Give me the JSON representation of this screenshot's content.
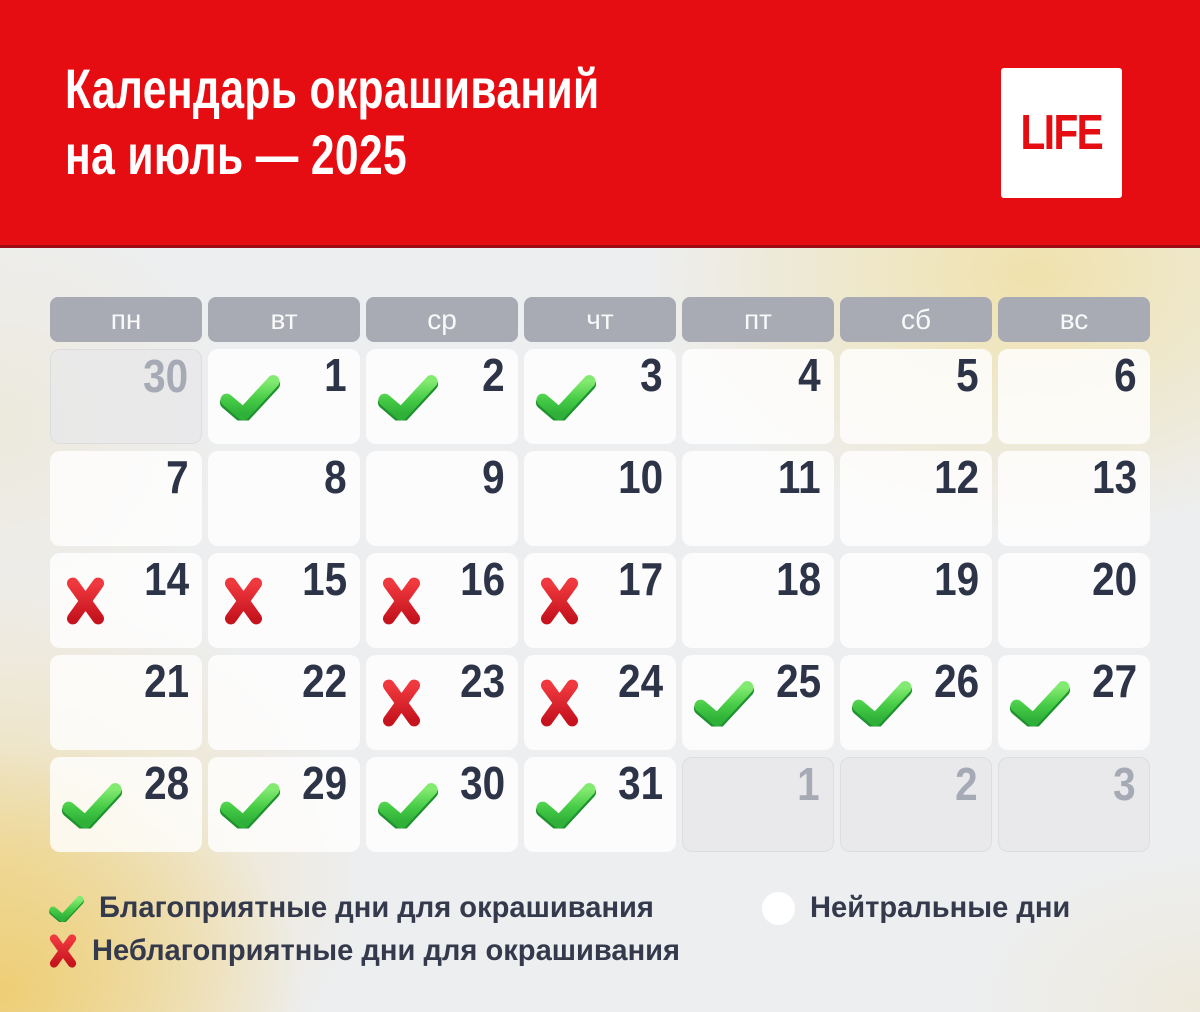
{
  "header": {
    "title_line1": "Календарь окрашиваний",
    "title_line2": "на июль — 2025",
    "logo_text": "LIFE"
  },
  "colors": {
    "brand_red": "#E60D12",
    "header_underline": "#9E0A14",
    "weekday_gray": "#A8ABB4",
    "day_number": "#2E3447",
    "muted_number": "#A6AAB5",
    "check_green": "#3CBE3E",
    "cross_red": "#DC2026",
    "page_bg": "#EDEEF0"
  },
  "calendar": {
    "weekdays": [
      "пн",
      "вт",
      "ср",
      "чт",
      "пт",
      "сб",
      "вс"
    ],
    "weeks": [
      [
        {
          "day": "30",
          "other": true,
          "mark": "none"
        },
        {
          "day": "1",
          "other": false,
          "mark": "check"
        },
        {
          "day": "2",
          "other": false,
          "mark": "check"
        },
        {
          "day": "3",
          "other": false,
          "mark": "check"
        },
        {
          "day": "4",
          "other": false,
          "mark": "none"
        },
        {
          "day": "5",
          "other": false,
          "mark": "none"
        },
        {
          "day": "6",
          "other": false,
          "mark": "none"
        }
      ],
      [
        {
          "day": "7",
          "other": false,
          "mark": "none"
        },
        {
          "day": "8",
          "other": false,
          "mark": "none"
        },
        {
          "day": "9",
          "other": false,
          "mark": "none"
        },
        {
          "day": "10",
          "other": false,
          "mark": "none"
        },
        {
          "day": "11",
          "other": false,
          "mark": "none"
        },
        {
          "day": "12",
          "other": false,
          "mark": "none"
        },
        {
          "day": "13",
          "other": false,
          "mark": "none"
        }
      ],
      [
        {
          "day": "14",
          "other": false,
          "mark": "cross"
        },
        {
          "day": "15",
          "other": false,
          "mark": "cross"
        },
        {
          "day": "16",
          "other": false,
          "mark": "cross"
        },
        {
          "day": "17",
          "other": false,
          "mark": "cross"
        },
        {
          "day": "18",
          "other": false,
          "mark": "none"
        },
        {
          "day": "19",
          "other": false,
          "mark": "none"
        },
        {
          "day": "20",
          "other": false,
          "mark": "none"
        }
      ],
      [
        {
          "day": "21",
          "other": false,
          "mark": "none"
        },
        {
          "day": "22",
          "other": false,
          "mark": "none"
        },
        {
          "day": "23",
          "other": false,
          "mark": "cross"
        },
        {
          "day": "24",
          "other": false,
          "mark": "cross"
        },
        {
          "day": "25",
          "other": false,
          "mark": "check"
        },
        {
          "day": "26",
          "other": false,
          "mark": "check"
        },
        {
          "day": "27",
          "other": false,
          "mark": "check"
        }
      ],
      [
        {
          "day": "28",
          "other": false,
          "mark": "check"
        },
        {
          "day": "29",
          "other": false,
          "mark": "check"
        },
        {
          "day": "30",
          "other": false,
          "mark": "check"
        },
        {
          "day": "31",
          "other": false,
          "mark": "check"
        },
        {
          "day": "1",
          "other": true,
          "mark": "none"
        },
        {
          "day": "2",
          "other": true,
          "mark": "none"
        },
        {
          "day": "3",
          "other": true,
          "mark": "none"
        }
      ]
    ]
  },
  "legend": {
    "favorable": {
      "icon": "check-icon",
      "label": "Благоприятные дни для окрашивания"
    },
    "unfavorable": {
      "icon": "cross-icon",
      "label": "Неблагоприятные дни для окрашивания"
    },
    "neutral": {
      "icon": "circle-icon",
      "label": "Нейтральные дни"
    }
  }
}
